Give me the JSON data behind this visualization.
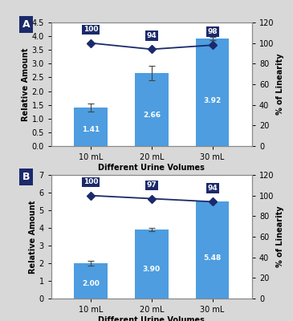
{
  "panel_A": {
    "categories": [
      "10 mL",
      "20 mL",
      "30 mL"
    ],
    "bar_values": [
      1.41,
      2.66,
      3.92
    ],
    "bar_errors": [
      0.15,
      0.25,
      0.05
    ],
    "line_values": [
      100,
      94,
      98
    ],
    "bar_labels": [
      "1.41",
      "2.66",
      "3.92"
    ],
    "line_labels": [
      "100",
      "94",
      "98"
    ],
    "ylabel_left": "Relative Amount",
    "ylabel_right": "% of Linearity",
    "xlabel": "Different Urine Volumes",
    "ylim_left": [
      0.0,
      4.5
    ],
    "ylim_right": [
      0,
      120
    ],
    "yticks_left": [
      0.0,
      0.5,
      1.0,
      1.5,
      2.0,
      2.5,
      3.0,
      3.5,
      4.0,
      4.5
    ],
    "yticks_left_labels": [
      "0.0",
      "0.5",
      "1.0",
      "1.5",
      "2.0",
      "2.5",
      "3.0",
      "3.5",
      "4.0",
      "4.5"
    ],
    "yticks_right": [
      0,
      20,
      40,
      60,
      80,
      100,
      120
    ],
    "panel_label": "A"
  },
  "panel_B": {
    "categories": [
      "10 mL",
      "20 mL",
      "30 mL"
    ],
    "bar_values": [
      2.0,
      3.9,
      5.48
    ],
    "bar_errors": [
      0.12,
      0.08,
      0.05
    ],
    "line_values": [
      100,
      97,
      94
    ],
    "bar_labels": [
      "2.00",
      "3.90",
      "5.48"
    ],
    "line_labels": [
      "100",
      "97",
      "94"
    ],
    "ylabel_left": "Relative Amount",
    "ylabel_right": "% of Linearity",
    "xlabel": "Different Urine Volumes",
    "ylim_left": [
      0,
      7
    ],
    "ylim_right": [
      0,
      120
    ],
    "yticks_left": [
      0,
      1,
      2,
      3,
      4,
      5,
      6,
      7
    ],
    "yticks_left_labels": [
      "0",
      "1",
      "2",
      "3",
      "4",
      "5",
      "6",
      "7"
    ],
    "yticks_right": [
      0,
      20,
      40,
      60,
      80,
      100,
      120
    ],
    "panel_label": "B"
  },
  "bar_color": "#4d9de0",
  "line_color": "#1b2a6b",
  "label_bg_color": "#1b2a6b",
  "label_text_color": "white",
  "bar_text_color": "white",
  "background_color": "#d8d8d8",
  "plot_bg_color": "#ffffff",
  "panel_label_bg": "#1b2a6b",
  "panel_label_color": "white",
  "spine_color": "#888888"
}
